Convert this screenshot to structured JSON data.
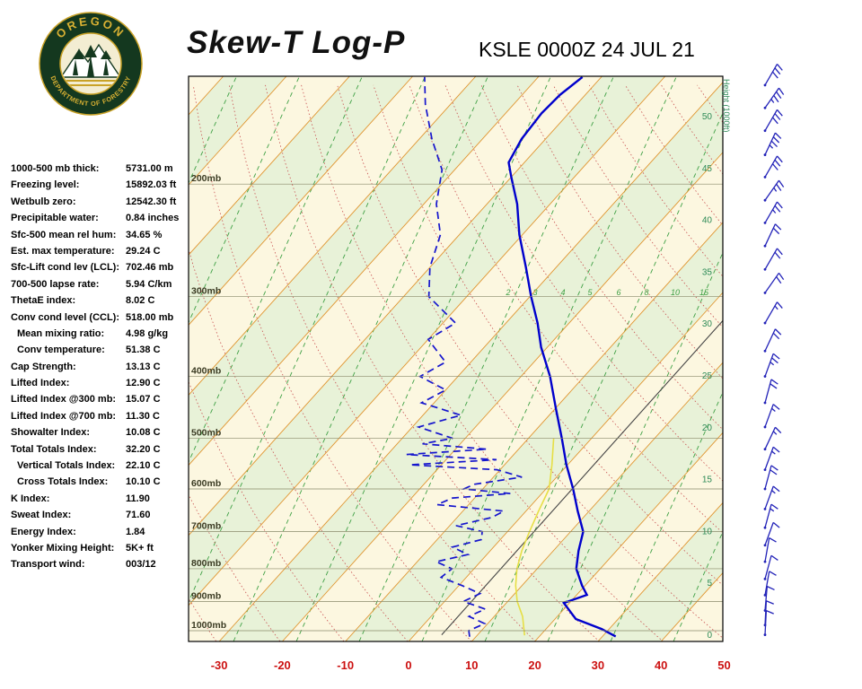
{
  "header": {
    "title": "Skew-T Log-P",
    "station": "KSLE 0000Z 24 JUL 21",
    "logo_top": "OREGON",
    "logo_bottom": "DEPARTMENT OF FORESTRY"
  },
  "indices": [
    {
      "label": "1000-500 mb thick:",
      "value": "5731.00 m",
      "indent": false
    },
    {
      "label": "Freezing level:",
      "value": "15892.03 ft",
      "indent": false
    },
    {
      "label": "Wetbulb zero:",
      "value": "12542.30 ft",
      "indent": false
    },
    {
      "label": "Precipitable water:",
      "value": "0.84 inches",
      "indent": false
    },
    {
      "label": "Sfc-500 mean rel hum:",
      "value": "34.65 %",
      "indent": false
    },
    {
      "label": "Est. max temperature:",
      "value": "29.24 C",
      "indent": false
    },
    {
      "label": "Sfc-Lift cond lev (LCL):",
      "value": "702.46 mb",
      "indent": false
    },
    {
      "label": "700-500 lapse rate:",
      "value": "5.94 C/km",
      "indent": false
    },
    {
      "label": "ThetaE index:",
      "value": "8.02 C",
      "indent": false
    },
    {
      "label": "Conv cond level (CCL):",
      "value": "518.00 mb",
      "indent": false
    },
    {
      "label": "Mean mixing ratio:",
      "value": "4.98 g/kg",
      "indent": true
    },
    {
      "label": "Conv temperature:",
      "value": "51.38 C",
      "indent": true
    },
    {
      "label": "Cap Strength:",
      "value": "13.13 C",
      "indent": false
    },
    {
      "label": "Lifted Index:",
      "value": "12.90 C",
      "indent": false
    },
    {
      "label": "Lifted Index @300 mb:",
      "value": "15.07 C",
      "indent": false
    },
    {
      "label": "Lifted Index @700 mb:",
      "value": "11.30 C",
      "indent": false
    },
    {
      "label": "Showalter Index:",
      "value": "10.08 C",
      "indent": false
    },
    {
      "label": "Total Totals Index:",
      "value": "32.20 C",
      "indent": false
    },
    {
      "label": "Vertical Totals Index:",
      "value": "22.10 C",
      "indent": true
    },
    {
      "label": "Cross Totals Index:",
      "value": "10.10 C",
      "indent": true
    },
    {
      "label": "K Index:",
      "value": "11.90",
      "indent": false
    },
    {
      "label": "Sweat Index:",
      "value": "71.60",
      "indent": false
    },
    {
      "label": "Energy Index:",
      "value": "1.84",
      "indent": false
    },
    {
      "label": "Yonker Mixing Height:",
      "value": "5K+ ft",
      "indent": false
    },
    {
      "label": "Transport wind:",
      "value": "003/12",
      "indent": false
    }
  ],
  "chart_data": {
    "type": "line",
    "title": "Skew-T Log-P",
    "station": "KSLE 0000Z 24 JUL 21",
    "axes": {
      "temp_ticks_c": [
        -30,
        -20,
        -10,
        0,
        10,
        20,
        30,
        40,
        50
      ],
      "pressure_levels_mb": [
        200,
        300,
        400,
        500,
        600,
        700,
        800,
        900,
        1000
      ],
      "pressure_suffix": "mb",
      "height_ticks_kft": [
        0,
        5,
        10,
        15,
        20,
        25,
        30,
        35,
        40,
        45,
        50
      ],
      "height_axis_label": "Height (1000ft)"
    },
    "series": [
      {
        "name": "reference-line",
        "color": "#444444",
        "width": 1.1,
        "dash": "",
        "points": [
          {
            "p": 1015,
            "t": 4.3
          },
          {
            "p": 322,
            "t": 4.0
          }
        ]
      },
      {
        "name": "wetbulb",
        "color": "#e6df45",
        "width": 1.6,
        "dash": "",
        "points": [
          {
            "p": 1017,
            "t": 17.5
          },
          {
            "p": 950,
            "t": 14.5
          },
          {
            "p": 900,
            "t": 11.5
          },
          {
            "p": 850,
            "t": 9.0
          },
          {
            "p": 800,
            "t": 6.8
          },
          {
            "p": 750,
            "t": 5.0
          },
          {
            "p": 700,
            "t": 3.5
          },
          {
            "p": 650,
            "t": 2.0
          },
          {
            "p": 600,
            "t": 0.5
          },
          {
            "p": 550,
            "t": -2.5
          },
          {
            "p": 500,
            "t": -6.0
          }
        ]
      },
      {
        "name": "dewpoint",
        "color": "#1515cd",
        "width": 1.7,
        "dash": "8,5",
        "points": [
          {
            "p": 1022,
            "t": 9
          },
          {
            "p": 1000,
            "t": 8
          },
          {
            "p": 975,
            "t": 9.5
          },
          {
            "p": 950,
            "t": 6
          },
          {
            "p": 925,
            "t": 7.5
          },
          {
            "p": 900,
            "t": 3
          },
          {
            "p": 875,
            "t": 4.5
          },
          {
            "p": 850,
            "t": 0.5
          },
          {
            "p": 825,
            "t": -4
          },
          {
            "p": 800,
            "t": -3.5
          },
          {
            "p": 780,
            "t": -7
          },
          {
            "p": 760,
            "t": -3
          },
          {
            "p": 740,
            "t": -6.5
          },
          {
            "p": 720,
            "t": -3
          },
          {
            "p": 700,
            "t": -4
          },
          {
            "p": 685,
            "t": -9
          },
          {
            "p": 665,
            "t": -4.5
          },
          {
            "p": 650,
            "t": -3.5
          },
          {
            "p": 635,
            "t": -15
          },
          {
            "p": 620,
            "t": -13.5
          },
          {
            "p": 610,
            "t": -5
          },
          {
            "p": 600,
            "t": -13
          },
          {
            "p": 590,
            "t": -12
          },
          {
            "p": 575,
            "t": -5.5
          },
          {
            "p": 560,
            "t": -10.5
          },
          {
            "p": 550,
            "t": -25
          },
          {
            "p": 540,
            "t": -12
          },
          {
            "p": 530,
            "t": -27
          },
          {
            "p": 520,
            "t": -15
          },
          {
            "p": 510,
            "t": -26
          },
          {
            "p": 500,
            "t": -22
          },
          {
            "p": 480,
            "t": -29
          },
          {
            "p": 460,
            "t": -24
          },
          {
            "p": 440,
            "t": -32
          },
          {
            "p": 420,
            "t": -30
          },
          {
            "p": 400,
            "t": -36
          },
          {
            "p": 380,
            "t": -34
          },
          {
            "p": 350,
            "t": -40
          },
          {
            "p": 330,
            "t": -38
          },
          {
            "p": 300,
            "t": -46
          },
          {
            "p": 270,
            "t": -50
          },
          {
            "p": 240,
            "t": -53
          },
          {
            "p": 215,
            "t": -58
          },
          {
            "p": 190,
            "t": -62
          },
          {
            "p": 170,
            "t": -68
          },
          {
            "p": 150,
            "t": -74
          },
          {
            "p": 136,
            "t": -78
          }
        ]
      },
      {
        "name": "temperature",
        "color": "#0000cc",
        "width": 2.4,
        "dash": "",
        "points": [
          {
            "p": 1021,
            "t": 32.1
          },
          {
            "p": 994,
            "t": 28.8
          },
          {
            "p": 959,
            "t": 23.3
          },
          {
            "p": 905,
            "t": 19.1
          },
          {
            "p": 879,
            "t": 21.6
          },
          {
            "p": 850,
            "t": 19.5
          },
          {
            "p": 800,
            "t": 16.2
          },
          {
            "p": 750,
            "t": 14.0
          },
          {
            "p": 700,
            "t": 12.0
          },
          {
            "p": 650,
            "t": 8.2
          },
          {
            "p": 600,
            "t": 4.3
          },
          {
            "p": 550,
            "t": -0.2
          },
          {
            "p": 500,
            "t": -4.7
          },
          {
            "p": 450,
            "t": -9.8
          },
          {
            "p": 400,
            "t": -15.4
          },
          {
            "p": 360,
            "t": -21.0
          },
          {
            "p": 330,
            "t": -25.0
          },
          {
            "p": 300,
            "t": -29.8
          },
          {
            "p": 270,
            "t": -34.8
          },
          {
            "p": 240,
            "t": -40.5
          },
          {
            "p": 215,
            "t": -45.2
          },
          {
            "p": 195,
            "t": -50.0
          },
          {
            "p": 185,
            "t": -52.5
          },
          {
            "p": 170,
            "t": -53.8
          },
          {
            "p": 155,
            "t": -54.3
          },
          {
            "p": 145,
            "t": -54.0
          },
          {
            "p": 136,
            "t": -53.0
          }
        ]
      }
    ],
    "wind_barbs": [
      {
        "p": 140,
        "dir": 30,
        "spd": 30
      },
      {
        "p": 152,
        "dir": 35,
        "spd": 35
      },
      {
        "p": 165,
        "dir": 30,
        "spd": 30
      },
      {
        "p": 180,
        "dir": 25,
        "spd": 35
      },
      {
        "p": 195,
        "dir": 30,
        "spd": 30
      },
      {
        "p": 212,
        "dir": 35,
        "spd": 25
      },
      {
        "p": 230,
        "dir": 30,
        "spd": 25
      },
      {
        "p": 250,
        "dir": 25,
        "spd": 20
      },
      {
        "p": 272,
        "dir": 30,
        "spd": 20
      },
      {
        "p": 296,
        "dir": 35,
        "spd": 20
      },
      {
        "p": 330,
        "dir": 30,
        "spd": 15
      },
      {
        "p": 365,
        "dir": 25,
        "spd": 20
      },
      {
        "p": 400,
        "dir": 20,
        "spd": 25
      },
      {
        "p": 440,
        "dir": 15,
        "spd": 20
      },
      {
        "p": 480,
        "dir": 20,
        "spd": 15
      },
      {
        "p": 520,
        "dir": 25,
        "spd": 15
      },
      {
        "p": 560,
        "dir": 20,
        "spd": 15
      },
      {
        "p": 600,
        "dir": 15,
        "spd": 20
      },
      {
        "p": 645,
        "dir": 20,
        "spd": 15
      },
      {
        "p": 690,
        "dir": 15,
        "spd": 15
      },
      {
        "p": 735,
        "dir": 20,
        "spd": 10
      },
      {
        "p": 780,
        "dir": 10,
        "spd": 10
      },
      {
        "p": 830,
        "dir": 15,
        "spd": 10
      },
      {
        "p": 880,
        "dir": 10,
        "spd": 10
      },
      {
        "p": 930,
        "dir": 5,
        "spd": 10
      },
      {
        "p": 980,
        "dir": 3,
        "spd": 12
      },
      {
        "p": 1015,
        "dir": 3,
        "spd": 12
      }
    ],
    "mixing_ratio_labels": [
      {
        "v": "2",
        "x": 566
      },
      {
        "v": "3",
        "x": 596
      },
      {
        "v": "4",
        "x": 627
      },
      {
        "v": "5",
        "x": 657
      },
      {
        "v": "6",
        "x": 689
      },
      {
        "v": "8",
        "x": 720
      },
      {
        "v": "10",
        "x": 752
      },
      {
        "v": "15",
        "x": 784
      }
    ],
    "mixing_label_y": 329,
    "barb_x": 852,
    "colors": {
      "band_cream": "#fcf7e0",
      "band_green": "#e8f2d8",
      "isotherm_orange": "#e09530",
      "dry_red": "#c85050",
      "moist_green": "#3fa045",
      "temp_blue": "#0000cc",
      "axis_red": "#cc1111",
      "height_green": "#2e8b57",
      "barb_blue": "#2222b8",
      "pressure_label": "#3a3a22"
    }
  }
}
